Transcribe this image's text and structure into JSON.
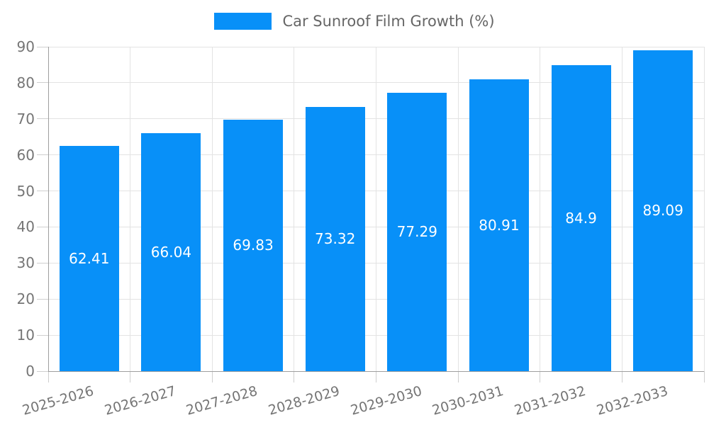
{
  "chart_data": {
    "type": "bar",
    "title": "Car Sunroof Film Growth (%)",
    "legend": {
      "position": "top",
      "label": "Car Sunroof Film Growth (%)"
    },
    "categories": [
      "2025-2026",
      "2026-2027",
      "2027-2028",
      "2028-2029",
      "2029-2030",
      "2030-2031",
      "2031-2032",
      "2032-2033"
    ],
    "series": [
      {
        "name": "Car Sunroof Film Growth (%)",
        "values": [
          62.41,
          66.04,
          69.83,
          73.32,
          77.29,
          80.91,
          84.9,
          89.09
        ],
        "value_labels": [
          "62.41",
          "66.04",
          "69.83",
          "73.32",
          "77.29",
          "80.91",
          "84.9",
          "89.09"
        ]
      }
    ],
    "xlabel": "",
    "ylabel": "",
    "ylim": [
      0,
      90
    ],
    "y_ticks": [
      0,
      10,
      20,
      30,
      40,
      50,
      60,
      70,
      80,
      90
    ],
    "grid": true,
    "colors": {
      "bar": "#0890f8",
      "grid": "#e3e3e3",
      "tick": "#cfcfcf",
      "axis": "#9e9e9e",
      "tick_label": "#757575",
      "legend_text": "#666666",
      "bar_label": "#ffffff",
      "background": "#ffffff"
    }
  }
}
